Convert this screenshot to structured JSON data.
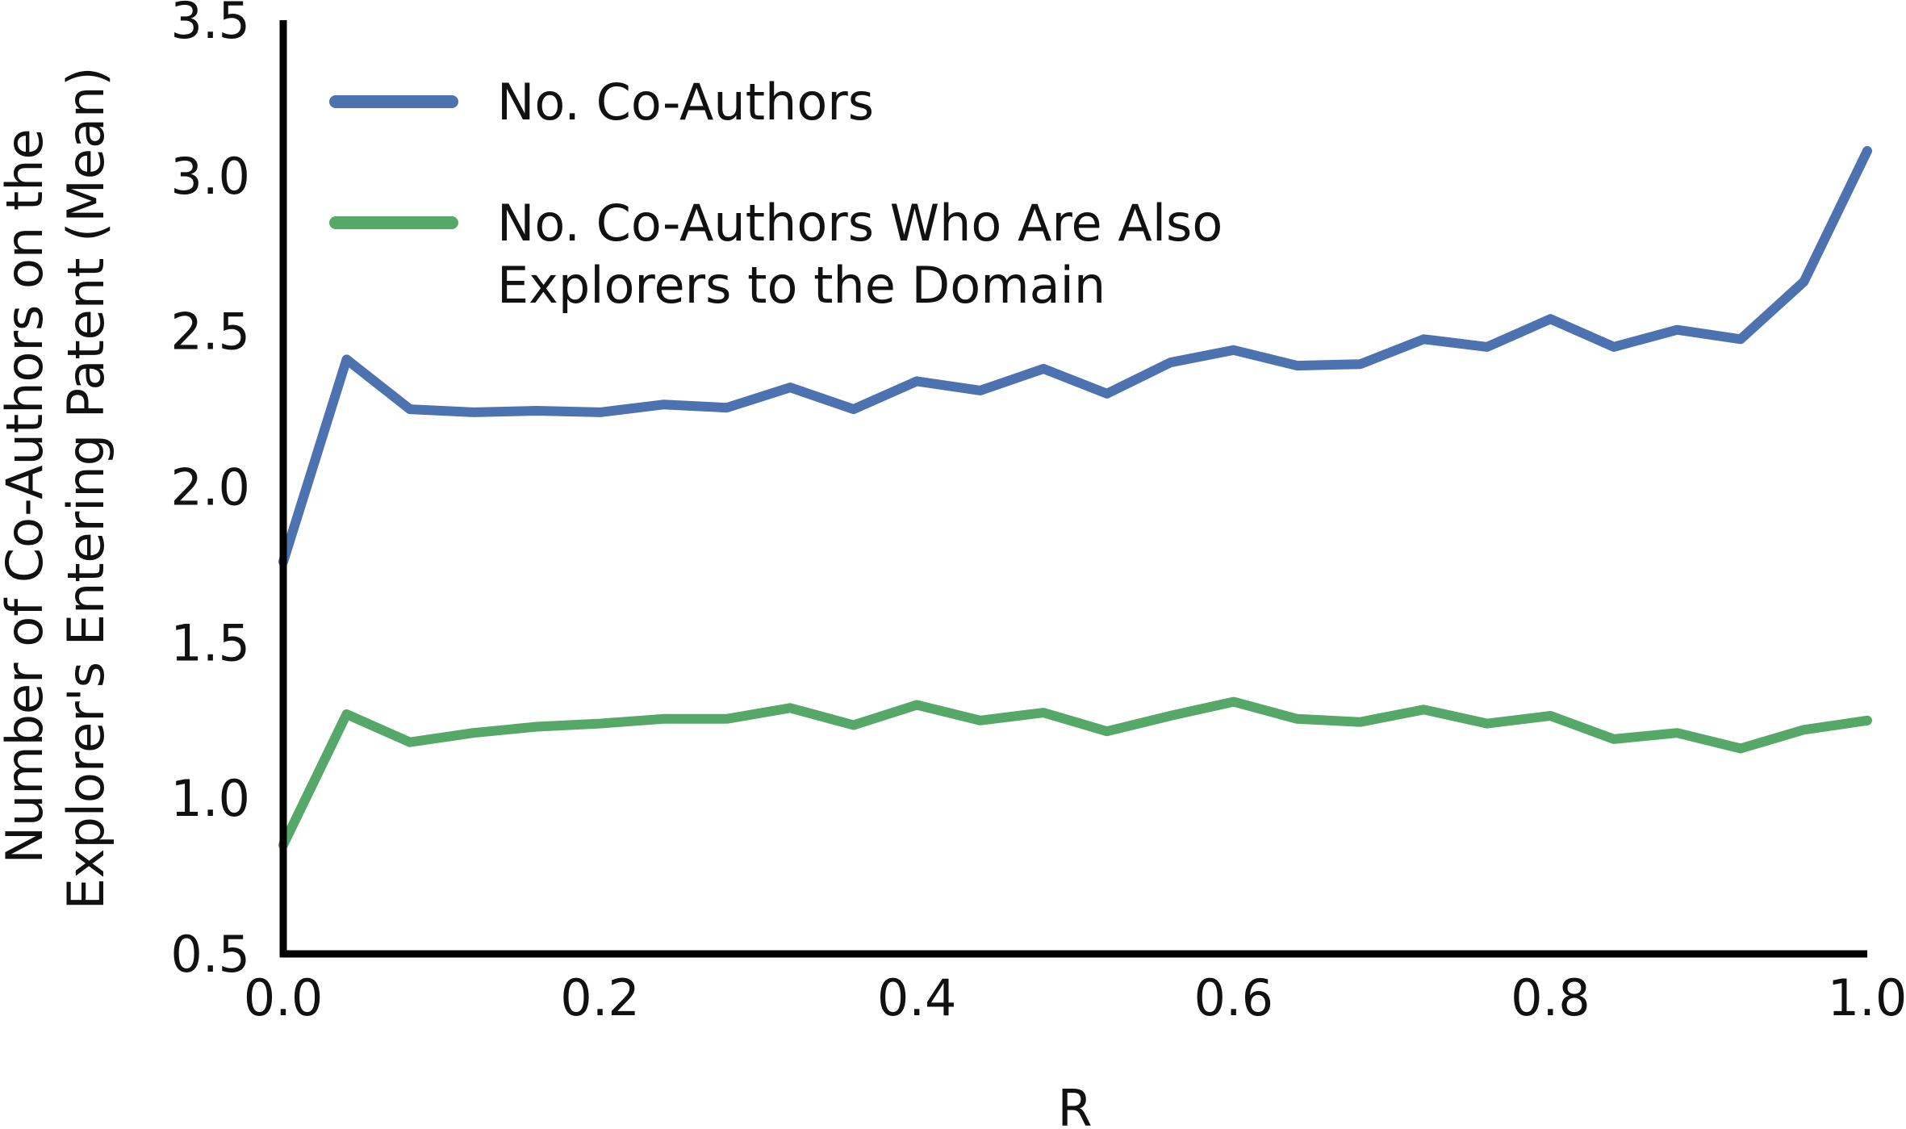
{
  "chart_data": {
    "type": "line",
    "title": "",
    "xlabel": "R",
    "ylabel": [
      "Number of Co-Authors on the",
      "Explorer's Entering Patent (Mean)"
    ],
    "xlim": [
      0.0,
      1.0
    ],
    "ylim": [
      0.5,
      3.5
    ],
    "x_ticks": [
      "0.0",
      "0.2",
      "0.4",
      "0.6",
      "0.8",
      "1.0"
    ],
    "y_ticks": [
      "0.5",
      "1.0",
      "1.5",
      "2.0",
      "2.5",
      "3.0",
      "3.5"
    ],
    "grid": false,
    "legend_position": "top-left",
    "x": [
      0.0,
      0.04,
      0.08,
      0.12,
      0.16,
      0.2,
      0.24,
      0.28,
      0.32,
      0.36,
      0.4,
      0.44,
      0.48,
      0.52,
      0.56,
      0.6,
      0.64,
      0.68,
      0.72,
      0.76,
      0.8,
      0.84,
      0.88,
      0.92,
      0.96,
      1.0
    ],
    "series": [
      {
        "name": "No. Co-Authors",
        "legend_lines": [
          "No. Co-Authors"
        ],
        "color": "#4c72b0",
        "values": [
          1.76,
          2.41,
          2.25,
          2.24,
          2.245,
          2.24,
          2.265,
          2.255,
          2.32,
          2.25,
          2.34,
          2.31,
          2.38,
          2.3,
          2.4,
          2.44,
          2.39,
          2.395,
          2.475,
          2.45,
          2.54,
          2.45,
          2.505,
          2.475,
          2.66,
          3.08
        ]
      },
      {
        "name": "No. Co-Authors Who Are Also Explorers to the Domain",
        "legend_lines": [
          "No. Co-Authors Who Are Also",
          "Explorers to the Domain"
        ],
        "color": "#55a868",
        "values": [
          0.85,
          1.27,
          1.18,
          1.21,
          1.23,
          1.24,
          1.255,
          1.255,
          1.29,
          1.235,
          1.3,
          1.25,
          1.275,
          1.215,
          1.265,
          1.31,
          1.255,
          1.245,
          1.285,
          1.24,
          1.265,
          1.19,
          1.21,
          1.16,
          1.22,
          1.25
        ]
      }
    ]
  }
}
